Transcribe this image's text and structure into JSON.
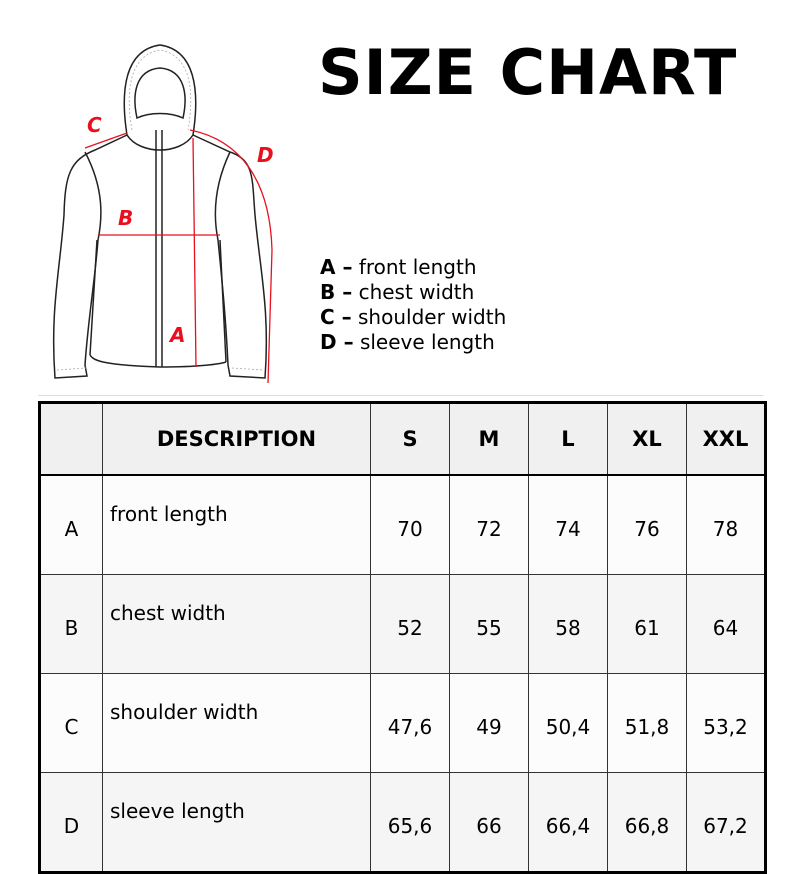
{
  "title": "SIZE CHART",
  "accent_color": "#e8101e",
  "diagram_labels": [
    "A",
    "B",
    "C",
    "D"
  ],
  "legend": [
    {
      "key": "A –",
      "text": "front length"
    },
    {
      "key": "B –",
      "text": "chest width"
    },
    {
      "key": "C –",
      "text": "shoulder width"
    },
    {
      "key": "D –",
      "text": "sleeve length"
    }
  ],
  "table": {
    "headers": [
      "",
      "DESCRIPTION",
      "S",
      "M",
      "L",
      "XL",
      "XXL"
    ],
    "rows": [
      {
        "letter": "A",
        "desc": "front length",
        "values": [
          "70",
          "72",
          "74",
          "76",
          "78"
        ]
      },
      {
        "letter": "B",
        "desc": "chest width",
        "values": [
          "52",
          "55",
          "58",
          "61",
          "64"
        ]
      },
      {
        "letter": "C",
        "desc": "shoulder width",
        "values": [
          "47,6",
          "49",
          "50,4",
          "51,8",
          "53,2"
        ]
      },
      {
        "letter": "D",
        "desc": "sleeve length",
        "values": [
          "65,6",
          "66",
          "66,4",
          "66,8",
          "67,2"
        ]
      }
    ]
  }
}
